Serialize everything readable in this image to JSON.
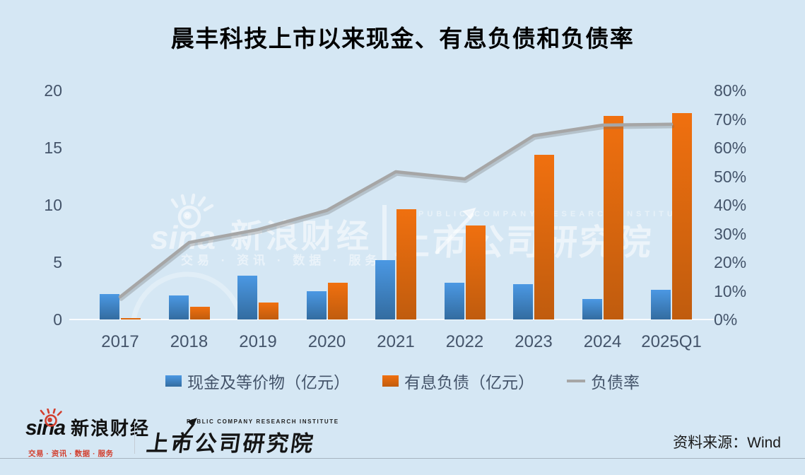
{
  "title": "晨丰科技上市以来现金、有息负债和负债率",
  "chart_data": {
    "type": "bar+line",
    "title": "晨丰科技上市以来现金、有息负债和负债率",
    "categories": [
      "2017",
      "2018",
      "2019",
      "2020",
      "2021",
      "2022",
      "2023",
      "2024",
      "2025Q1"
    ],
    "series": [
      {
        "name": "现金及等价物（亿元）",
        "type": "bar",
        "axis": "left",
        "values": [
          2.2,
          2.1,
          3.8,
          2.5,
          5.2,
          3.2,
          3.1,
          1.8,
          2.6
        ]
      },
      {
        "name": "有息负债（亿元）",
        "type": "bar",
        "axis": "left",
        "values": [
          0.1,
          1.1,
          1.5,
          3.2,
          9.6,
          8.2,
          14.4,
          17.8,
          18.0
        ]
      },
      {
        "name": "负债率",
        "type": "line",
        "axis": "right",
        "unit": "%",
        "values": [
          7.9,
          26.9,
          31.4,
          38.1,
          51.6,
          49.1,
          64.2,
          67.9,
          68.2
        ]
      }
    ],
    "left_axis": {
      "ticks": [
        0,
        5,
        10,
        15,
        20
      ],
      "min": 0,
      "max": 20
    },
    "right_axis": {
      "ticks": [
        "0%",
        "10%",
        "20%",
        "30%",
        "40%",
        "50%",
        "60%",
        "70%",
        "80%"
      ],
      "min_pct": 0,
      "max_pct": 80
    },
    "grid": false,
    "legend_position": "bottom"
  },
  "legend": {
    "items": [
      {
        "label": "现金及等价物（亿元）",
        "swatch": "blue-square"
      },
      {
        "label": "有息负债（亿元）",
        "swatch": "orange-square"
      },
      {
        "label": "负债率",
        "swatch": "gray-line"
      }
    ]
  },
  "watermark": {
    "sina_word": "sina",
    "sina_name": "新浪财经",
    "sina_sub": "交易 · 资讯 · 数据 · 服务",
    "pcri_caps": "PUBLIC COMPANY RESEARCH INSTITUTE",
    "pcri_name": "上市公司研究院"
  },
  "footer": {
    "sina_word": "sina",
    "sina_name": "新浪财经",
    "sina_sub": "交易 · 资讯 · 数据 · 服务",
    "pcri_caps": "PUBLIC COMPANY RESEARCH INSTITUTE",
    "pcri_name": "上市公司研究院",
    "source": "资料来源：Wind"
  },
  "colors": {
    "background": "#D5E7F4",
    "bar_cash_top": "#4B98E3",
    "bar_cash_bottom": "#336CA0",
    "bar_debt_top": "#F0700F",
    "bar_debt_bottom": "#C05C0E",
    "line": "#A6A6A6",
    "axis_text": "#44546A",
    "title_text": "#000000",
    "sina_red": "#D23F2E",
    "footer_rule": "#A7B4BF"
  }
}
